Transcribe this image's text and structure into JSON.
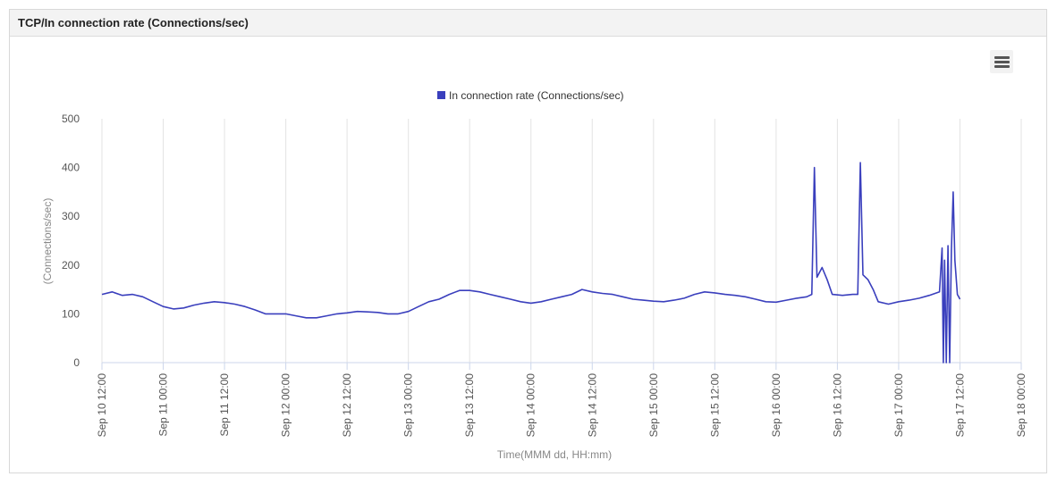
{
  "panel": {
    "title": "TCP/In connection rate (Connections/sec)"
  },
  "menu": {
    "icon": "hamburger-menu-icon"
  },
  "colors": {
    "series": "#3a3fbd",
    "grid": "#e3e3e3",
    "axis": "#ccd6eb"
  },
  "chart_data": {
    "type": "line",
    "title": "",
    "xlabel": "Time(MMM dd, HH:mm)",
    "ylabel": "(Connections/sec)",
    "ylim": [
      0,
      500
    ],
    "yticks": [
      "0",
      "100",
      "200",
      "300",
      "400",
      "500"
    ],
    "xlim": [
      "2023-09-10 12:00",
      "2023-09-18 00:00"
    ],
    "xticks": [
      "Sep 10 12:00",
      "Sep 11 00:00",
      "Sep 11 12:00",
      "Sep 12 00:00",
      "Sep 12 12:00",
      "Sep 13 00:00",
      "Sep 13 12:00",
      "Sep 14 00:00",
      "Sep 14 12:00",
      "Sep 15 00:00",
      "Sep 15 12:00",
      "Sep 16 00:00",
      "Sep 16 12:00",
      "Sep 17 00:00",
      "Sep 17 12:00",
      "Sep 18 00:00"
    ],
    "grid": "vertical",
    "legend": "top-center",
    "series": [
      {
        "name": "In connection rate (Connections/sec)",
        "points": [
          [
            "2023-09-10 12:00",
            140
          ],
          [
            "2023-09-10 14:00",
            145
          ],
          [
            "2023-09-10 16:00",
            138
          ],
          [
            "2023-09-10 18:00",
            140
          ],
          [
            "2023-09-10 20:00",
            135
          ],
          [
            "2023-09-10 22:00",
            125
          ],
          [
            "2023-09-11 00:00",
            115
          ],
          [
            "2023-09-11 02:00",
            110
          ],
          [
            "2023-09-11 04:00",
            112
          ],
          [
            "2023-09-11 06:00",
            118
          ],
          [
            "2023-09-11 08:00",
            122
          ],
          [
            "2023-09-11 10:00",
            125
          ],
          [
            "2023-09-11 12:00",
            123
          ],
          [
            "2023-09-11 14:00",
            120
          ],
          [
            "2023-09-11 16:00",
            115
          ],
          [
            "2023-09-11 18:00",
            108
          ],
          [
            "2023-09-11 20:00",
            100
          ],
          [
            "2023-09-11 22:00",
            100
          ],
          [
            "2023-09-12 00:00",
            100
          ],
          [
            "2023-09-12 02:00",
            96
          ],
          [
            "2023-09-12 04:00",
            92
          ],
          [
            "2023-09-12 06:00",
            92
          ],
          [
            "2023-09-12 08:00",
            96
          ],
          [
            "2023-09-12 10:00",
            100
          ],
          [
            "2023-09-12 12:00",
            102
          ],
          [
            "2023-09-12 14:00",
            105
          ],
          [
            "2023-09-12 16:00",
            104
          ],
          [
            "2023-09-12 18:00",
            103
          ],
          [
            "2023-09-12 20:00",
            100
          ],
          [
            "2023-09-12 22:00",
            100
          ],
          [
            "2023-09-13 00:00",
            105
          ],
          [
            "2023-09-13 02:00",
            115
          ],
          [
            "2023-09-13 04:00",
            125
          ],
          [
            "2023-09-13 06:00",
            130
          ],
          [
            "2023-09-13 08:00",
            140
          ],
          [
            "2023-09-13 10:00",
            148
          ],
          [
            "2023-09-13 12:00",
            148
          ],
          [
            "2023-09-13 14:00",
            145
          ],
          [
            "2023-09-13 16:00",
            140
          ],
          [
            "2023-09-13 18:00",
            135
          ],
          [
            "2023-09-13 20:00",
            130
          ],
          [
            "2023-09-13 22:00",
            125
          ],
          [
            "2023-09-14 00:00",
            122
          ],
          [
            "2023-09-14 02:00",
            125
          ],
          [
            "2023-09-14 04:00",
            130
          ],
          [
            "2023-09-14 06:00",
            135
          ],
          [
            "2023-09-14 08:00",
            140
          ],
          [
            "2023-09-14 10:00",
            150
          ],
          [
            "2023-09-14 12:00",
            145
          ],
          [
            "2023-09-14 14:00",
            142
          ],
          [
            "2023-09-14 16:00",
            140
          ],
          [
            "2023-09-14 18:00",
            135
          ],
          [
            "2023-09-14 20:00",
            130
          ],
          [
            "2023-09-14 22:00",
            128
          ],
          [
            "2023-09-15 00:00",
            126
          ],
          [
            "2023-09-15 02:00",
            125
          ],
          [
            "2023-09-15 04:00",
            128
          ],
          [
            "2023-09-15 06:00",
            132
          ],
          [
            "2023-09-15 08:00",
            140
          ],
          [
            "2023-09-15 10:00",
            145
          ],
          [
            "2023-09-15 12:00",
            143
          ],
          [
            "2023-09-15 14:00",
            140
          ],
          [
            "2023-09-15 16:00",
            138
          ],
          [
            "2023-09-15 18:00",
            135
          ],
          [
            "2023-09-15 20:00",
            130
          ],
          [
            "2023-09-15 22:00",
            125
          ],
          [
            "2023-09-16 00:00",
            124
          ],
          [
            "2023-09-16 02:00",
            128
          ],
          [
            "2023-09-16 04:00",
            132
          ],
          [
            "2023-09-16 06:00",
            135
          ],
          [
            "2023-09-16 07:00",
            140
          ],
          [
            "2023-09-16 07:30",
            400
          ],
          [
            "2023-09-16 08:00",
            175
          ],
          [
            "2023-09-16 09:00",
            195
          ],
          [
            "2023-09-16 10:00",
            170
          ],
          [
            "2023-09-16 11:00",
            140
          ],
          [
            "2023-09-16 13:00",
            138
          ],
          [
            "2023-09-16 15:00",
            140
          ],
          [
            "2023-09-16 16:00",
            140
          ],
          [
            "2023-09-16 16:30",
            410
          ],
          [
            "2023-09-16 17:00",
            180
          ],
          [
            "2023-09-16 18:00",
            170
          ],
          [
            "2023-09-16 19:00",
            150
          ],
          [
            "2023-09-16 20:00",
            125
          ],
          [
            "2023-09-16 22:00",
            120
          ],
          [
            "2023-09-17 00:00",
            125
          ],
          [
            "2023-09-17 02:00",
            128
          ],
          [
            "2023-09-17 04:00",
            132
          ],
          [
            "2023-09-17 06:00",
            138
          ],
          [
            "2023-09-17 08:00",
            145
          ],
          [
            "2023-09-17 08:30",
            235
          ],
          [
            "2023-09-17 08:45",
            0
          ],
          [
            "2023-09-17 09:00",
            210
          ],
          [
            "2023-09-17 09:20",
            0
          ],
          [
            "2023-09-17 09:40",
            240
          ],
          [
            "2023-09-17 10:00",
            0
          ],
          [
            "2023-09-17 10:20",
            230
          ],
          [
            "2023-09-17 10:40",
            350
          ],
          [
            "2023-09-17 11:00",
            210
          ],
          [
            "2023-09-17 11:30",
            140
          ],
          [
            "2023-09-17 12:00",
            130
          ]
        ]
      }
    ]
  }
}
